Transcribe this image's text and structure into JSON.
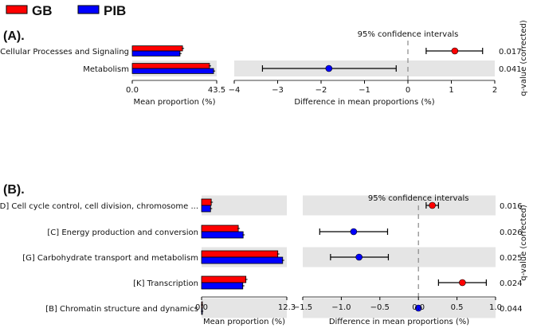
{
  "legend": [
    {
      "name": "GB",
      "color": "#ff0000"
    },
    {
      "name": "PIB",
      "color": "#0000ff"
    }
  ],
  "chart_data": [
    {
      "type": "bar+errorbar",
      "panel_label": "(A).",
      "ci_title": "95% confidence intervals",
      "qvalue_label": "q-value (corrected)",
      "bar_xlabel": "Mean proportion (%)",
      "diff_xlabel": "Difference in mean proportions (%)",
      "bar_xlim": [
        0,
        43.5
      ],
      "bar_ticks": [
        "0.0",
        "43.5"
      ],
      "diff_xlim": [
        -4,
        2
      ],
      "diff_ticks": [
        -4,
        -3,
        -2,
        -1,
        0,
        1,
        2
      ],
      "diff_tick_labels": [
        "−4",
        "−3",
        "−2",
        "−1",
        "0",
        "1",
        "2"
      ],
      "categories": [
        "Cellular Processes and Signaling",
        "Metabolism"
      ],
      "series": [
        {
          "name": "GB",
          "values": [
            25.9,
            39.8
          ]
        },
        {
          "name": "PIB",
          "values": [
            24.6,
            41.9
          ]
        }
      ],
      "diff": [
        1.08,
        -1.82
      ],
      "ci_low": [
        0.42,
        -3.35
      ],
      "ci_high": [
        1.72,
        -0.27
      ],
      "qvalues": [
        "0.017",
        "0.041"
      ]
    },
    {
      "type": "bar+errorbar",
      "panel_label": "(B).",
      "ci_title": "95% confidence intervals",
      "qvalue_label": "q-value (corrected)",
      "bar_xlabel": "Mean proportion (%)",
      "diff_xlabel": "Difference in mean proportions (%)",
      "bar_xlim": [
        0,
        12.3
      ],
      "bar_ticks": [
        "0.0",
        "12.3"
      ],
      "diff_xlim": [
        -1.5,
        1.0
      ],
      "diff_ticks": [
        -1.5,
        -1.0,
        -0.5,
        0.0,
        0.5,
        1.0
      ],
      "diff_tick_labels": [
        "−1.5",
        "−1.0",
        "−0.5",
        "0.0",
        "0.5",
        "1.0"
      ],
      "categories": [
        "[D] Cell cycle control, cell division, chromosome ...",
        "[C] Energy production and conversion",
        "[G] Carbohydrate transport and metabolism",
        "[K] Transcription",
        "[B] Chromatin structure and dynamics"
      ],
      "series": [
        {
          "name": "GB",
          "values": [
            1.4,
            5.3,
            11.0,
            6.4,
            0.02
          ]
        },
        {
          "name": "PIB",
          "values": [
            1.3,
            6.0,
            11.7,
            5.95,
            0.02
          ]
        }
      ],
      "diff": [
        0.18,
        -0.84,
        -0.77,
        0.57,
        0.0
      ],
      "ci_low": [
        0.1,
        -1.28,
        -1.14,
        0.26,
        -0.01
      ],
      "ci_high": [
        0.26,
        -0.4,
        -0.39,
        0.88,
        0.01
      ],
      "qvalues": [
        "0.016",
        "0.026",
        "0.025",
        "0.024",
        "0.044"
      ]
    }
  ]
}
